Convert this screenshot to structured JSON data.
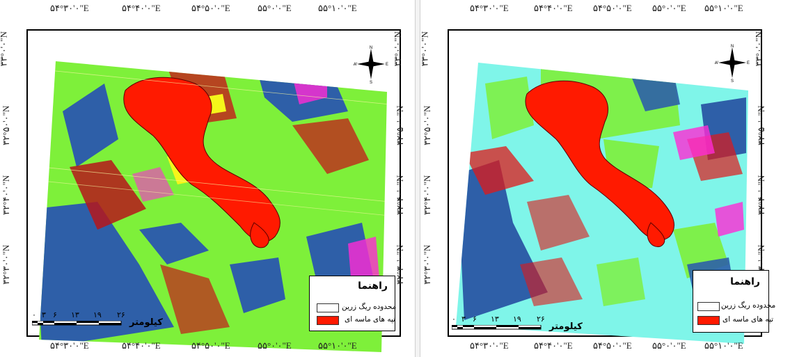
{
  "panels": [
    {
      "id": "left",
      "top_ticks": [
        "۵۴°۳۰'۰\"E",
        "۵۴°۴۰'۰\"E",
        "۵۴°۵۰'۰\"E",
        "۵۵°۰'۰\"E",
        "۵۵°۱۰'۰\"E"
      ],
      "bottom_ticks": [
        "۵۴°۳۰'۰\"E",
        "۵۴°۴۰'۰\"E",
        "۵۴°۵۰'۰\"E",
        "۵۵°۰'۰\"E",
        "۵۵°۱۰'۰\"E"
      ],
      "side_ticks": [
        "۳۳°۰'۰\"N",
        "۳۲°۵۰'۰\"N",
        "۳۲°۴۰'۰\"N",
        "۳۲°۳۰'۰\"N"
      ],
      "legend": {
        "title": "راهنما",
        "items": [
          {
            "label": "محدوده ریگ زرین",
            "color": "#ffffff"
          },
          {
            "label": "تپه های ماسه ای",
            "color": "#ff1a00"
          }
        ]
      },
      "scale": {
        "labels": [
          "۰",
          "۳",
          "۶",
          "۱۳",
          "۱۹",
          "۲۶"
        ],
        "unit": "کیلومتر"
      },
      "compass": {
        "n": "N",
        "s": "S",
        "e": "E",
        "w": "W"
      }
    },
    {
      "id": "right",
      "top_ticks": [
        "۵۴°۳۰'۰\"E",
        "۵۴°۴۰'۰\"E",
        "۵۴°۵۰'۰\"E",
        "۵۵°۰'۰\"E",
        "۵۵°۱۰'۰\"E"
      ],
      "bottom_ticks": [
        "۵۴°۳۰'۰\"E",
        "۵۴°۴۰'۰\"E",
        "۵۴°۵۰'۰\"E",
        "۵۵°۰'۰\"E",
        "۵۵°۱۰'۰\"E"
      ],
      "side_ticks": [
        "۳۳°۰'۰\"N",
        "۳۲°۵۰'۰\"N",
        "۳۲°۴۰'۰\"N",
        "۳۲°۳۰'۰\"N"
      ],
      "legend": {
        "title": "راهنما",
        "items": [
          {
            "label": "محدوده ریگ زرین",
            "color": "#ffffff"
          },
          {
            "label": "تپه های ماسه ای",
            "color": "#ff1a00"
          }
        ]
      },
      "scale": {
        "labels": [
          "۰",
          "۳",
          "۶",
          "۱۳",
          "۱۹",
          "۲۶"
        ],
        "unit": "کیلومتر"
      },
      "compass": {
        "n": "N",
        "s": "S",
        "e": "E",
        "w": "W"
      }
    }
  ],
  "colors": {
    "sand_dunes": "#ff1a00",
    "class_green": "#7ef03a",
    "class_blue": "#2e5fa8",
    "class_magenta": "#ff2ad4",
    "class_yellow": "#f5f51a",
    "class_cyan": "#7ff5e9",
    "class_dark_red": "#b5161b"
  }
}
